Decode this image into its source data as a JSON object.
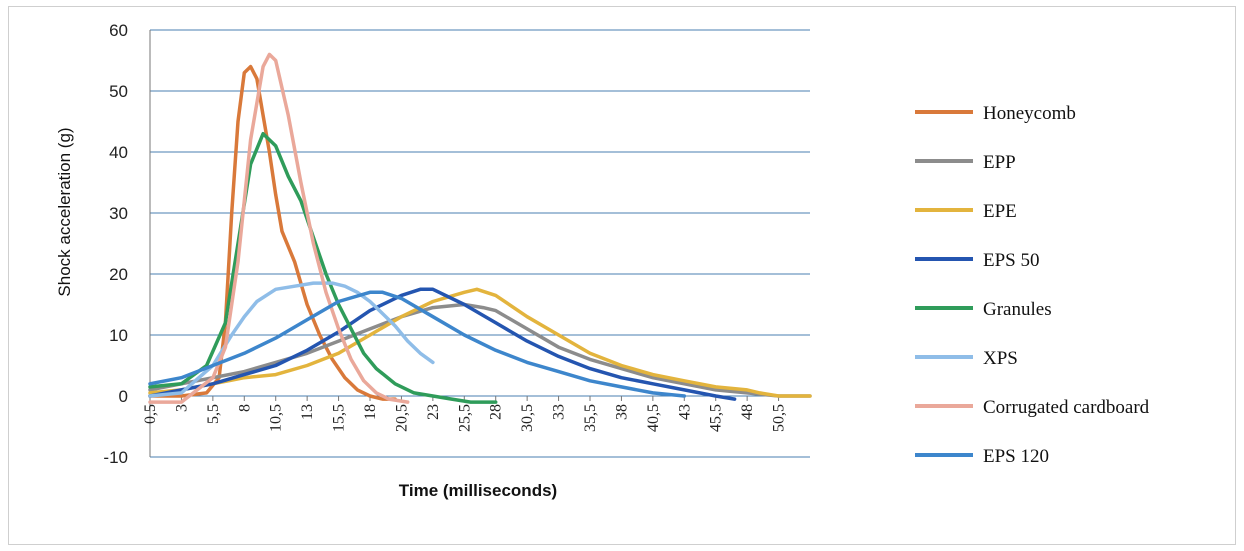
{
  "chart_data": {
    "type": "line",
    "xlabel": "Time (milliseconds)",
    "ylabel": "Shock acceleration (g)",
    "ylim": [
      -10,
      60
    ],
    "yticks": [
      -10,
      0,
      10,
      20,
      30,
      40,
      50,
      60
    ],
    "xlim": [
      0.5,
      53
    ],
    "xticks": [
      "0,5",
      "3",
      "5,5",
      "8",
      "10,5",
      "13",
      "15,5",
      "18",
      "20,5",
      "23",
      "25,5",
      "28",
      "30,5",
      "33",
      "35,5",
      "38",
      "40,5",
      "43",
      "45,5",
      "48",
      "50,5"
    ],
    "grid": "horizontal",
    "legend_position": "right",
    "series": [
      {
        "name": "Honeycomb",
        "color": "#d9793a",
        "x": [
          0.5,
          3,
          5,
          6,
          6.5,
          7,
          7.5,
          8,
          8.5,
          9,
          9.5,
          10,
          10.5,
          11,
          12,
          13,
          14,
          15,
          16,
          17,
          18,
          19,
          20
        ],
        "y": [
          0,
          0,
          0.5,
          3,
          12,
          30,
          45,
          53,
          54,
          52,
          46,
          40,
          33,
          27,
          22,
          15,
          10,
          6,
          3,
          1,
          0,
          -0.5,
          -0.5
        ]
      },
      {
        "name": "EPP",
        "color": "#8c8c8c",
        "x": [
          0.5,
          3,
          5.5,
          8,
          10.5,
          13,
          15.5,
          18,
          20.5,
          23,
          25.5,
          27,
          28,
          30.5,
          33,
          35.5,
          38,
          40.5,
          43,
          45.5,
          48,
          50.5,
          53
        ],
        "y": [
          1,
          2,
          3,
          4,
          5.5,
          7,
          9,
          11,
          13,
          14.5,
          15,
          14.5,
          14,
          11,
          8,
          6,
          4.5,
          3,
          2,
          1,
          0.5,
          0,
          0
        ]
      },
      {
        "name": "EPE",
        "color": "#e3b43d",
        "x": [
          0.5,
          3,
          5.5,
          8,
          10.5,
          13,
          15.5,
          18,
          20.5,
          23,
          25.5,
          26.5,
          28,
          30.5,
          33,
          35.5,
          38,
          40.5,
          43,
          45.5,
          48,
          49,
          50.5,
          53
        ],
        "y": [
          0.5,
          1,
          2,
          3,
          3.5,
          5,
          7,
          10,
          13,
          15.5,
          17,
          17.5,
          16.5,
          13,
          10,
          7,
          5,
          3.5,
          2.5,
          1.5,
          1,
          0.5,
          0,
          0
        ]
      },
      {
        "name": "EPS 50",
        "color": "#2455b0",
        "x": [
          0.5,
          3,
          5.5,
          8,
          10.5,
          13,
          15.5,
          18,
          20.5,
          22,
          23,
          25.5,
          28,
          30.5,
          33,
          35.5,
          38,
          40.5,
          43,
          45.5,
          47
        ],
        "y": [
          0,
          1,
          2,
          3.5,
          5,
          7.5,
          10.5,
          14,
          16.5,
          17.5,
          17.5,
          15,
          12,
          9,
          6.5,
          4.5,
          3,
          2,
          1,
          0,
          -0.5
        ]
      },
      {
        "name": "Granules",
        "color": "#2f9c5a",
        "x": [
          0.5,
          3,
          5,
          6.5,
          7.5,
          8.5,
          9.5,
          10.5,
          11.5,
          12.5,
          13.5,
          14.5,
          15.5,
          16.5,
          17.5,
          18.5,
          20,
          21.5,
          23,
          24.5,
          26,
          28
        ],
        "y": [
          1.5,
          2,
          5,
          12,
          25,
          38,
          43,
          41,
          36,
          32,
          26,
          20,
          15,
          11,
          7,
          4.5,
          2,
          0.5,
          0,
          -0.5,
          -1,
          -1
        ]
      },
      {
        "name": "XPS",
        "color": "#8fbde8",
        "x": [
          0.5,
          3,
          5.5,
          7,
          8,
          9,
          10.5,
          12,
          13.5,
          15,
          16,
          17,
          18,
          19,
          20,
          21,
          22,
          23
        ],
        "y": [
          0,
          0.5,
          5,
          10,
          13,
          15.5,
          17.5,
          18,
          18.5,
          18.5,
          18,
          17,
          15.5,
          13.5,
          11.5,
          9,
          7,
          5.5
        ]
      },
      {
        "name": "Corrugated cardboard",
        "color": "#eaa89a",
        "x": [
          0.5,
          3,
          5.5,
          6.5,
          7.5,
          8.5,
          9.5,
          10,
          10.5,
          11.5,
          12.5,
          13.5,
          14.5,
          15.5,
          16.5,
          17.5,
          18.5,
          19.5,
          21
        ],
        "y": [
          -1,
          -1,
          3,
          8,
          22,
          42,
          54,
          56,
          55,
          46,
          35,
          25,
          17,
          11,
          6,
          2.5,
          0.5,
          -0.5,
          -1
        ]
      },
      {
        "name": "EPS 120",
        "color": "#3d86cc",
        "x": [
          0.5,
          3,
          5.5,
          8,
          10.5,
          13,
          15.5,
          18,
          19,
          20.5,
          23,
          25.5,
          28,
          30.5,
          33,
          35.5,
          38,
          40.5,
          43
        ],
        "y": [
          2,
          3,
          5,
          7,
          9.5,
          12.5,
          15.5,
          17,
          17,
          16,
          13,
          10,
          7.5,
          5.5,
          4,
          2.5,
          1.5,
          0.5,
          0
        ]
      }
    ]
  }
}
